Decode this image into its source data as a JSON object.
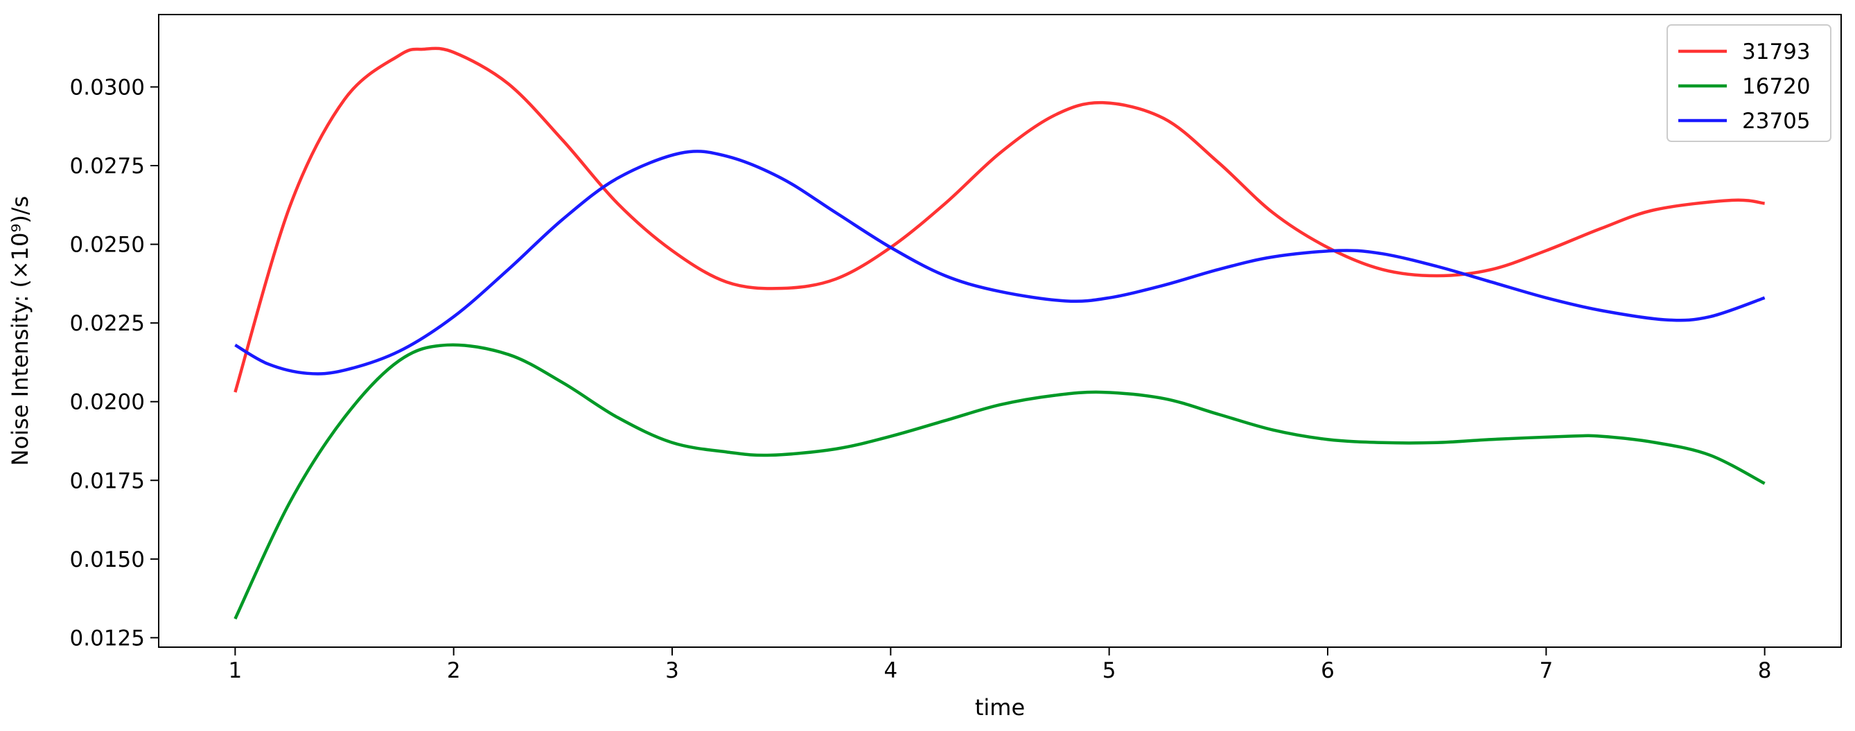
{
  "chart_data": {
    "type": "line",
    "title": "",
    "xlabel": "time",
    "ylabel": "Noise Intensity:  (×10⁹)/s",
    "xlim": [
      0.65,
      8.35
    ],
    "ylim": [
      0.0122,
      0.0323
    ],
    "xticks": [
      1,
      2,
      3,
      4,
      5,
      6,
      7,
      8
    ],
    "xtick_labels": [
      "1",
      "2",
      "3",
      "4",
      "5",
      "6",
      "7",
      "8"
    ],
    "yticks": [
      0.0125,
      0.015,
      0.0175,
      0.02,
      0.0225,
      0.025,
      0.0275,
      0.03
    ],
    "ytick_labels": [
      "0.0125",
      "0.0150",
      "0.0175",
      "0.0200",
      "0.0225",
      "0.0250",
      "0.0275",
      "0.0300"
    ],
    "grid": false,
    "legend_position": "top-right",
    "series": [
      {
        "name": "31793",
        "color": "#ff3333",
        "x": [
          1.0,
          1.25,
          1.5,
          1.75,
          1.86,
          2.0,
          2.25,
          2.5,
          2.75,
          3.0,
          3.25,
          3.5,
          3.75,
          4.0,
          4.25,
          4.5,
          4.75,
          4.97,
          5.25,
          5.5,
          5.75,
          6.0,
          6.25,
          6.5,
          6.75,
          7.0,
          7.25,
          7.5,
          7.85,
          8.0
        ],
        "y": [
          0.0203,
          0.0262,
          0.0296,
          0.031,
          0.0312,
          0.0311,
          0.0301,
          0.0283,
          0.0263,
          0.0248,
          0.0238,
          0.0236,
          0.0239,
          0.0249,
          0.0263,
          0.0279,
          0.0291,
          0.0295,
          0.029,
          0.0276,
          0.026,
          0.0249,
          0.0242,
          0.024,
          0.0242,
          0.0248,
          0.0255,
          0.0261,
          0.0264,
          0.0263
        ]
      },
      {
        "name": "16720",
        "color": "#009926",
        "x": [
          1.0,
          1.25,
          1.5,
          1.75,
          1.97,
          2.25,
          2.5,
          2.75,
          3.0,
          3.25,
          3.45,
          3.75,
          4.0,
          4.25,
          4.5,
          4.75,
          4.97,
          5.25,
          5.5,
          5.75,
          6.0,
          6.25,
          6.5,
          6.75,
          7.1,
          7.25,
          7.5,
          7.75,
          8.0
        ],
        "y": [
          0.0131,
          0.0168,
          0.0195,
          0.0213,
          0.0218,
          0.0215,
          0.0206,
          0.0195,
          0.0187,
          0.0184,
          0.0183,
          0.0185,
          0.0189,
          0.0194,
          0.0199,
          0.0202,
          0.0203,
          0.0201,
          0.0196,
          0.0191,
          0.0188,
          0.0187,
          0.0187,
          0.0188,
          0.0189,
          0.0189,
          0.0187,
          0.0183,
          0.0174
        ]
      },
      {
        "name": "23705",
        "color": "#1a1aff",
        "x": [
          1.0,
          1.15,
          1.33,
          1.5,
          1.75,
          2.0,
          2.25,
          2.5,
          2.75,
          3.04,
          3.25,
          3.5,
          3.75,
          4.0,
          4.25,
          4.5,
          4.8,
          5.0,
          5.25,
          5.5,
          5.75,
          6.05,
          6.25,
          6.5,
          6.75,
          7.0,
          7.25,
          7.55,
          7.75,
          8.0
        ],
        "y": [
          0.0218,
          0.0212,
          0.0209,
          0.021,
          0.0216,
          0.0227,
          0.0242,
          0.0258,
          0.0271,
          0.0279,
          0.0278,
          0.0271,
          0.026,
          0.0249,
          0.024,
          0.0235,
          0.0232,
          0.0233,
          0.0237,
          0.0242,
          0.0246,
          0.0248,
          0.0247,
          0.0243,
          0.0238,
          0.0233,
          0.0229,
          0.0226,
          0.0227,
          0.0233
        ]
      }
    ]
  }
}
